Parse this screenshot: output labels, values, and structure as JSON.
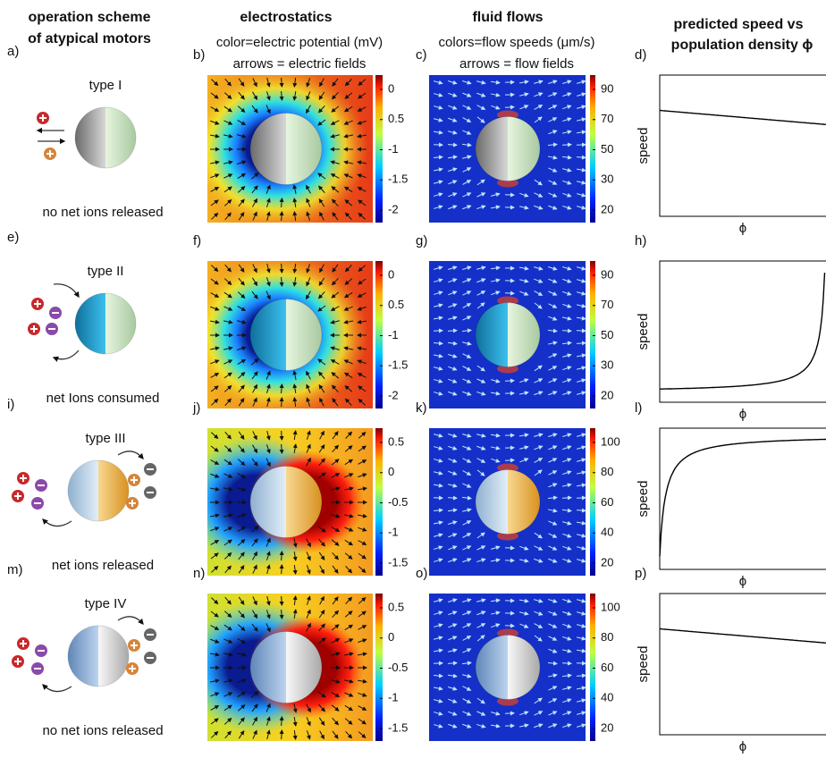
{
  "headers": {
    "scheme": [
      "operation scheme",
      "of atypical motors"
    ],
    "electrostatics": {
      "title": "electrostatics",
      "lines": [
        "color=electric potential (mV)",
        "arrows = electric fields"
      ]
    },
    "flows": {
      "title": "fluid flows",
      "lines": [
        "colors=flow speeds (μm/s)",
        "arrows = flow fields"
      ]
    },
    "speed": [
      "predicted speed vs",
      "population density ϕ"
    ]
  },
  "rows": [
    {
      "labels": [
        "a)",
        "b)",
        "c)",
        "d)"
      ],
      "type": "type I",
      "caption": "no net ions released",
      "potential_ticks": [
        0,
        0.5,
        -1,
        -1.5,
        -2
      ],
      "speed_ticks": [
        90,
        70,
        50,
        30,
        20
      ]
    },
    {
      "labels": [
        "e)",
        "f)",
        "g)",
        "h)"
      ],
      "type": "type II",
      "caption": "net Ions consumed",
      "potential_ticks": [
        0,
        0.5,
        -1,
        -1.5,
        -2
      ],
      "speed_ticks": [
        90,
        70,
        50,
        30,
        20
      ]
    },
    {
      "labels": [
        "i)",
        "j)",
        "k)",
        "l)"
      ],
      "type": "type III",
      "caption": "net ions released",
      "potential_ticks": [
        0.5,
        0,
        -0.5,
        -1,
        -1.5
      ],
      "speed_ticks": [
        100,
        80,
        60,
        40,
        20
      ]
    },
    {
      "labels": [
        "m)",
        "n)",
        "o)",
        "p)"
      ],
      "type": "type IV",
      "caption": "no net ions released",
      "potential_ticks": [
        0.5,
        0,
        -0.5,
        -1,
        -1.5
      ],
      "speed_ticks": [
        100,
        80,
        60,
        40,
        20
      ]
    }
  ],
  "plot": {
    "ylabel": "speed",
    "xlabel": "ϕ"
  }
}
